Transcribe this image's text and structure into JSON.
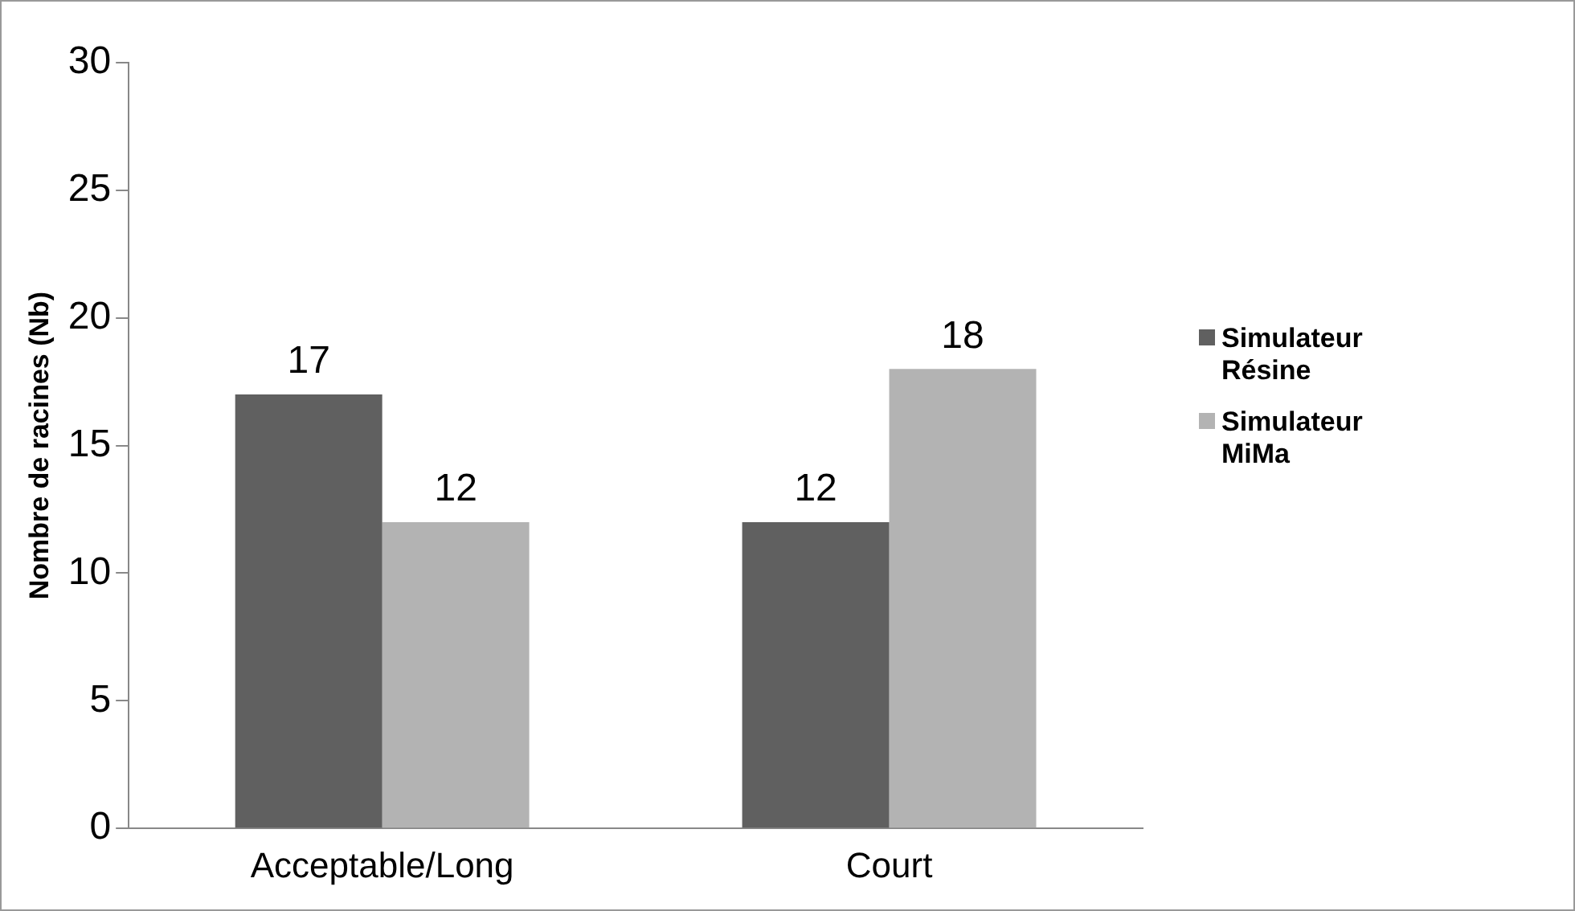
{
  "chart_data": {
    "type": "bar",
    "ylabel": "Nombre de racines (Nb)",
    "categories": [
      "Acceptable/Long",
      "Court"
    ],
    "series": [
      {
        "name": "Simulateur Résine",
        "color": "#606060",
        "values": [
          17,
          12
        ]
      },
      {
        "name": "Simulateur MiMa",
        "color": "#b3b3b3",
        "values": [
          12,
          18
        ]
      }
    ],
    "ylim": [
      0,
      30
    ],
    "yticks": [
      0,
      5,
      10,
      15,
      20,
      25,
      30
    ],
    "grid": false,
    "legend": "right",
    "data_labels": true
  }
}
